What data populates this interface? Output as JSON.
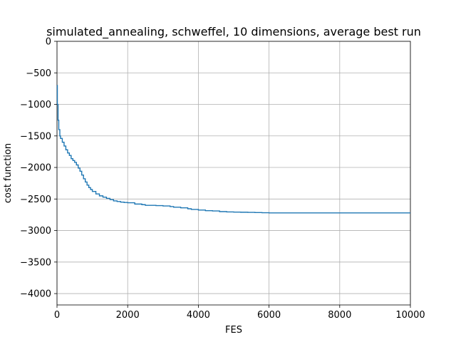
{
  "chart_data": {
    "type": "line",
    "title": "simulated_annealing, schweffel, 10 dimensions, average best run",
    "xlabel": "FES",
    "ylabel": "cost function",
    "xlim": [
      0,
      10000
    ],
    "ylim": [
      -4180,
      0
    ],
    "xticks": [
      0,
      2000,
      4000,
      6000,
      8000,
      10000
    ],
    "yticks": [
      0,
      -500,
      -1000,
      -1500,
      -2000,
      -2500,
      -3000,
      -3500,
      -4000
    ],
    "grid": true,
    "line_color": "#1f77b4",
    "series": [
      {
        "x": [
          0,
          10,
          30,
          50,
          80,
          100,
          150,
          200,
          250,
          300,
          350,
          400,
          450,
          500,
          550,
          600,
          650,
          700,
          750,
          800,
          850,
          900,
          950,
          1000,
          1100,
          1200,
          1300,
          1400,
          1500,
          1600,
          1700,
          1800,
          1900,
          2000,
          2200,
          2400,
          2500,
          2800,
          3000,
          3200,
          3300,
          3500,
          3700,
          3800,
          4000,
          4200,
          4400,
          4600,
          4800,
          5000,
          5200,
          5400,
          5600,
          5800,
          6000,
          7000,
          8000,
          9000,
          10000
        ],
        "y": [
          -700,
          -1000,
          -1250,
          -1400,
          -1500,
          -1540,
          -1600,
          -1660,
          -1720,
          -1770,
          -1810,
          -1860,
          -1890,
          -1920,
          -1960,
          -2010,
          -2060,
          -2120,
          -2180,
          -2230,
          -2280,
          -2320,
          -2350,
          -2380,
          -2420,
          -2450,
          -2470,
          -2490,
          -2510,
          -2530,
          -2540,
          -2550,
          -2555,
          -2560,
          -2580,
          -2590,
          -2600,
          -2605,
          -2610,
          -2620,
          -2630,
          -2640,
          -2655,
          -2665,
          -2675,
          -2685,
          -2690,
          -2700,
          -2705,
          -2708,
          -2710,
          -2712,
          -2715,
          -2718,
          -2720,
          -2720,
          -2720,
          -2720,
          -2720
        ]
      }
    ]
  }
}
